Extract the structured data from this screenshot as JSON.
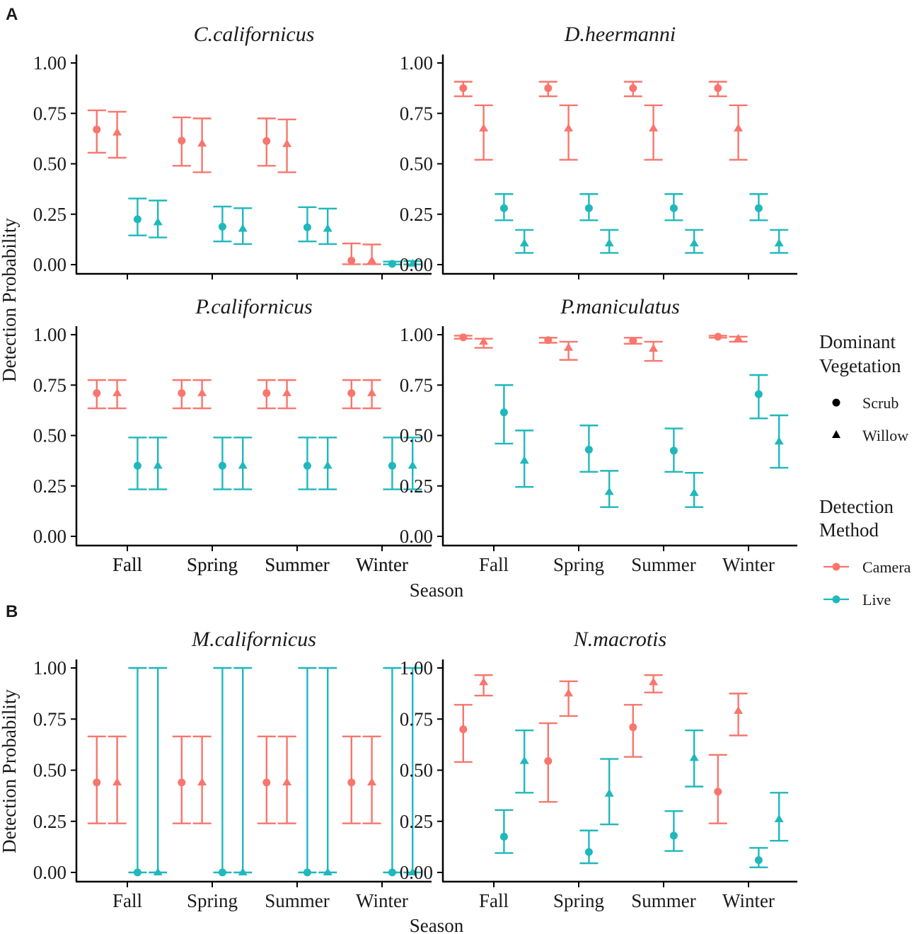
{
  "colors": {
    "camera": "#F8766D",
    "live": "#1FB8BC",
    "axis": "#000000",
    "text": "#1a1a1a"
  },
  "panel_labels": [
    "A",
    "B"
  ],
  "legend": {
    "vegetation_title_line1": "Dominant",
    "vegetation_title_line2": "Vegetation",
    "vegetation_items": [
      "Scrub",
      "Willow"
    ],
    "method_title_line1": "Detection",
    "method_title_line2": "Method",
    "method_items": [
      "Camera",
      "Live"
    ]
  },
  "chart_data": [
    {
      "type": "errorbar",
      "panel": "A",
      "xlabel": "Season",
      "ylabel": "Detection Probability",
      "categories": [
        "Fall",
        "Spring",
        "Summer",
        "Winter"
      ],
      "yticks": [
        "0.00",
        "0.25",
        "0.50",
        "0.75",
        "1.00"
      ],
      "ylim": [
        0,
        1
      ],
      "facets": [
        {
          "title": "C.californicus",
          "series": [
            {
              "name": "Camera-Scrub",
              "method": "Camera",
              "vegetation": "Scrub",
              "values": [
                0.67,
                0.615,
                0.613,
                0.02
              ],
              "lower": [
                0.555,
                0.49,
                0.49,
                0.002
              ],
              "upper": [
                0.765,
                0.73,
                0.725,
                0.105
              ]
            },
            {
              "name": "Camera-Willow",
              "method": "Camera",
              "vegetation": "Willow",
              "values": [
                0.655,
                0.6,
                0.598,
                0.02
              ],
              "lower": [
                0.53,
                0.458,
                0.458,
                0.002
              ],
              "upper": [
                0.758,
                0.725,
                0.72,
                0.1
              ]
            },
            {
              "name": "Live-Scrub",
              "method": "Live",
              "vegetation": "Scrub",
              "values": [
                0.225,
                0.188,
                0.185,
                0.004
              ],
              "lower": [
                0.145,
                0.115,
                0.115,
                0.001
              ],
              "upper": [
                0.328,
                0.288,
                0.285,
                0.015
              ]
            },
            {
              "name": "Live-Willow",
              "method": "Live",
              "vegetation": "Willow",
              "values": [
                0.21,
                0.178,
                0.178,
                0.005
              ],
              "lower": [
                0.135,
                0.102,
                0.102,
                0.001
              ],
              "upper": [
                0.318,
                0.28,
                0.278,
                0.018
              ]
            }
          ]
        },
        {
          "title": "D.heermanni",
          "series": [
            {
              "name": "Camera-Scrub",
              "method": "Camera",
              "vegetation": "Scrub",
              "values": [
                0.875,
                0.875,
                0.875,
                0.875
              ],
              "lower": [
                0.835,
                0.835,
                0.835,
                0.835
              ],
              "upper": [
                0.907,
                0.907,
                0.907,
                0.907
              ]
            },
            {
              "name": "Camera-Willow",
              "method": "Camera",
              "vegetation": "Willow",
              "values": [
                0.675,
                0.675,
                0.675,
                0.675
              ],
              "lower": [
                0.52,
                0.52,
                0.52,
                0.52
              ],
              "upper": [
                0.79,
                0.79,
                0.79,
                0.79
              ]
            },
            {
              "name": "Live-Scrub",
              "method": "Live",
              "vegetation": "Scrub",
              "values": [
                0.28,
                0.28,
                0.28,
                0.28
              ],
              "lower": [
                0.22,
                0.22,
                0.22,
                0.22
              ],
              "upper": [
                0.35,
                0.35,
                0.35,
                0.35
              ]
            },
            {
              "name": "Live-Willow",
              "method": "Live",
              "vegetation": "Willow",
              "values": [
                0.105,
                0.105,
                0.105,
                0.105
              ],
              "lower": [
                0.058,
                0.058,
                0.058,
                0.058
              ],
              "upper": [
                0.172,
                0.172,
                0.172,
                0.172
              ]
            }
          ]
        },
        {
          "title": "P.californicus",
          "series": [
            {
              "name": "Camera-Scrub",
              "method": "Camera",
              "vegetation": "Scrub",
              "values": [
                0.71,
                0.71,
                0.71,
                0.71
              ],
              "lower": [
                0.635,
                0.635,
                0.635,
                0.635
              ],
              "upper": [
                0.775,
                0.775,
                0.775,
                0.775
              ]
            },
            {
              "name": "Camera-Willow",
              "method": "Camera",
              "vegetation": "Willow",
              "values": [
                0.71,
                0.71,
                0.71,
                0.71
              ],
              "lower": [
                0.635,
                0.635,
                0.635,
                0.635
              ],
              "upper": [
                0.775,
                0.775,
                0.775,
                0.775
              ]
            },
            {
              "name": "Live-Scrub",
              "method": "Live",
              "vegetation": "Scrub",
              "values": [
                0.35,
                0.35,
                0.35,
                0.35
              ],
              "lower": [
                0.233,
                0.233,
                0.233,
                0.233
              ],
              "upper": [
                0.49,
                0.49,
                0.49,
                0.49
              ]
            },
            {
              "name": "Live-Willow",
              "method": "Live",
              "vegetation": "Willow",
              "values": [
                0.35,
                0.35,
                0.35,
                0.35
              ],
              "lower": [
                0.233,
                0.233,
                0.233,
                0.233
              ],
              "upper": [
                0.49,
                0.49,
                0.49,
                0.49
              ]
            }
          ]
        },
        {
          "title": "P.maniculatus",
          "series": [
            {
              "name": "Camera-Scrub",
              "method": "Camera",
              "vegetation": "Scrub",
              "values": [
                0.987,
                0.973,
                0.97,
                0.99
              ],
              "lower": [
                0.98,
                0.96,
                0.955,
                0.985
              ],
              "upper": [
                0.995,
                0.985,
                0.985,
                0.995
              ]
            },
            {
              "name": "Camera-Willow",
              "method": "Camera",
              "vegetation": "Willow",
              "values": [
                0.965,
                0.935,
                0.93,
                0.98
              ],
              "lower": [
                0.935,
                0.875,
                0.87,
                0.965
              ],
              "upper": [
                0.98,
                0.965,
                0.965,
                0.99
              ]
            },
            {
              "name": "Live-Scrub",
              "method": "Live",
              "vegetation": "Scrub",
              "values": [
                0.615,
                0.43,
                0.425,
                0.705
              ],
              "lower": [
                0.46,
                0.32,
                0.32,
                0.585
              ],
              "upper": [
                0.75,
                0.55,
                0.535,
                0.8
              ]
            },
            {
              "name": "Live-Willow",
              "method": "Live",
              "vegetation": "Willow",
              "values": [
                0.375,
                0.22,
                0.215,
                0.47
              ],
              "lower": [
                0.245,
                0.145,
                0.145,
                0.34
              ],
              "upper": [
                0.525,
                0.325,
                0.315,
                0.6
              ]
            }
          ]
        }
      ]
    },
    {
      "type": "errorbar",
      "panel": "B",
      "xlabel": "Season",
      "ylabel": "Detection Probability",
      "categories": [
        "Fall",
        "Spring",
        "Summer",
        "Winter"
      ],
      "yticks": [
        "0.00",
        "0.25",
        "0.50",
        "0.75",
        "1.00"
      ],
      "ylim": [
        0,
        1
      ],
      "facets": [
        {
          "title": "M.californicus",
          "series": [
            {
              "name": "Camera-Scrub",
              "method": "Camera",
              "vegetation": "Scrub",
              "values": [
                0.44,
                0.44,
                0.44,
                0.44
              ],
              "lower": [
                0.24,
                0.24,
                0.24,
                0.24
              ],
              "upper": [
                0.665,
                0.665,
                0.665,
                0.665
              ]
            },
            {
              "name": "Camera-Willow",
              "method": "Camera",
              "vegetation": "Willow",
              "values": [
                0.44,
                0.44,
                0.44,
                0.44
              ],
              "lower": [
                0.24,
                0.24,
                0.24,
                0.24
              ],
              "upper": [
                0.665,
                0.665,
                0.665,
                0.665
              ]
            },
            {
              "name": "Live-Scrub",
              "method": "Live",
              "vegetation": "Scrub",
              "values": [
                0.0,
                0.0,
                0.0,
                0.0
              ],
              "lower": [
                0.0,
                0.0,
                0.0,
                0.0
              ],
              "upper": [
                1.0,
                1.0,
                1.0,
                1.0
              ]
            },
            {
              "name": "Live-Willow",
              "method": "Live",
              "vegetation": "Willow",
              "values": [
                0.0,
                0.0,
                0.0,
                0.0
              ],
              "lower": [
                0.0,
                0.0,
                0.0,
                0.0
              ],
              "upper": [
                1.0,
                1.0,
                1.0,
                1.0
              ]
            }
          ]
        },
        {
          "title": "N.macrotis",
          "series": [
            {
              "name": "Camera-Scrub",
              "method": "Camera",
              "vegetation": "Scrub",
              "values": [
                0.7,
                0.545,
                0.71,
                0.395
              ],
              "lower": [
                0.54,
                0.345,
                0.565,
                0.24
              ],
              "upper": [
                0.82,
                0.73,
                0.82,
                0.575
              ]
            },
            {
              "name": "Camera-Willow",
              "method": "Camera",
              "vegetation": "Willow",
              "values": [
                0.93,
                0.875,
                0.93,
                0.79
              ],
              "lower": [
                0.865,
                0.765,
                0.88,
                0.67
              ],
              "upper": [
                0.965,
                0.935,
                0.965,
                0.875
              ]
            },
            {
              "name": "Live-Scrub",
              "method": "Live",
              "vegetation": "Scrub",
              "values": [
                0.175,
                0.1,
                0.18,
                0.06
              ],
              "lower": [
                0.095,
                0.045,
                0.105,
                0.025
              ],
              "upper": [
                0.305,
                0.205,
                0.3,
                0.12
              ]
            },
            {
              "name": "Live-Willow",
              "method": "Live",
              "vegetation": "Willow",
              "values": [
                0.545,
                0.385,
                0.56,
                0.26
              ],
              "lower": [
                0.39,
                0.235,
                0.42,
                0.155
              ],
              "upper": [
                0.695,
                0.555,
                0.695,
                0.39
              ]
            }
          ]
        }
      ]
    }
  ]
}
